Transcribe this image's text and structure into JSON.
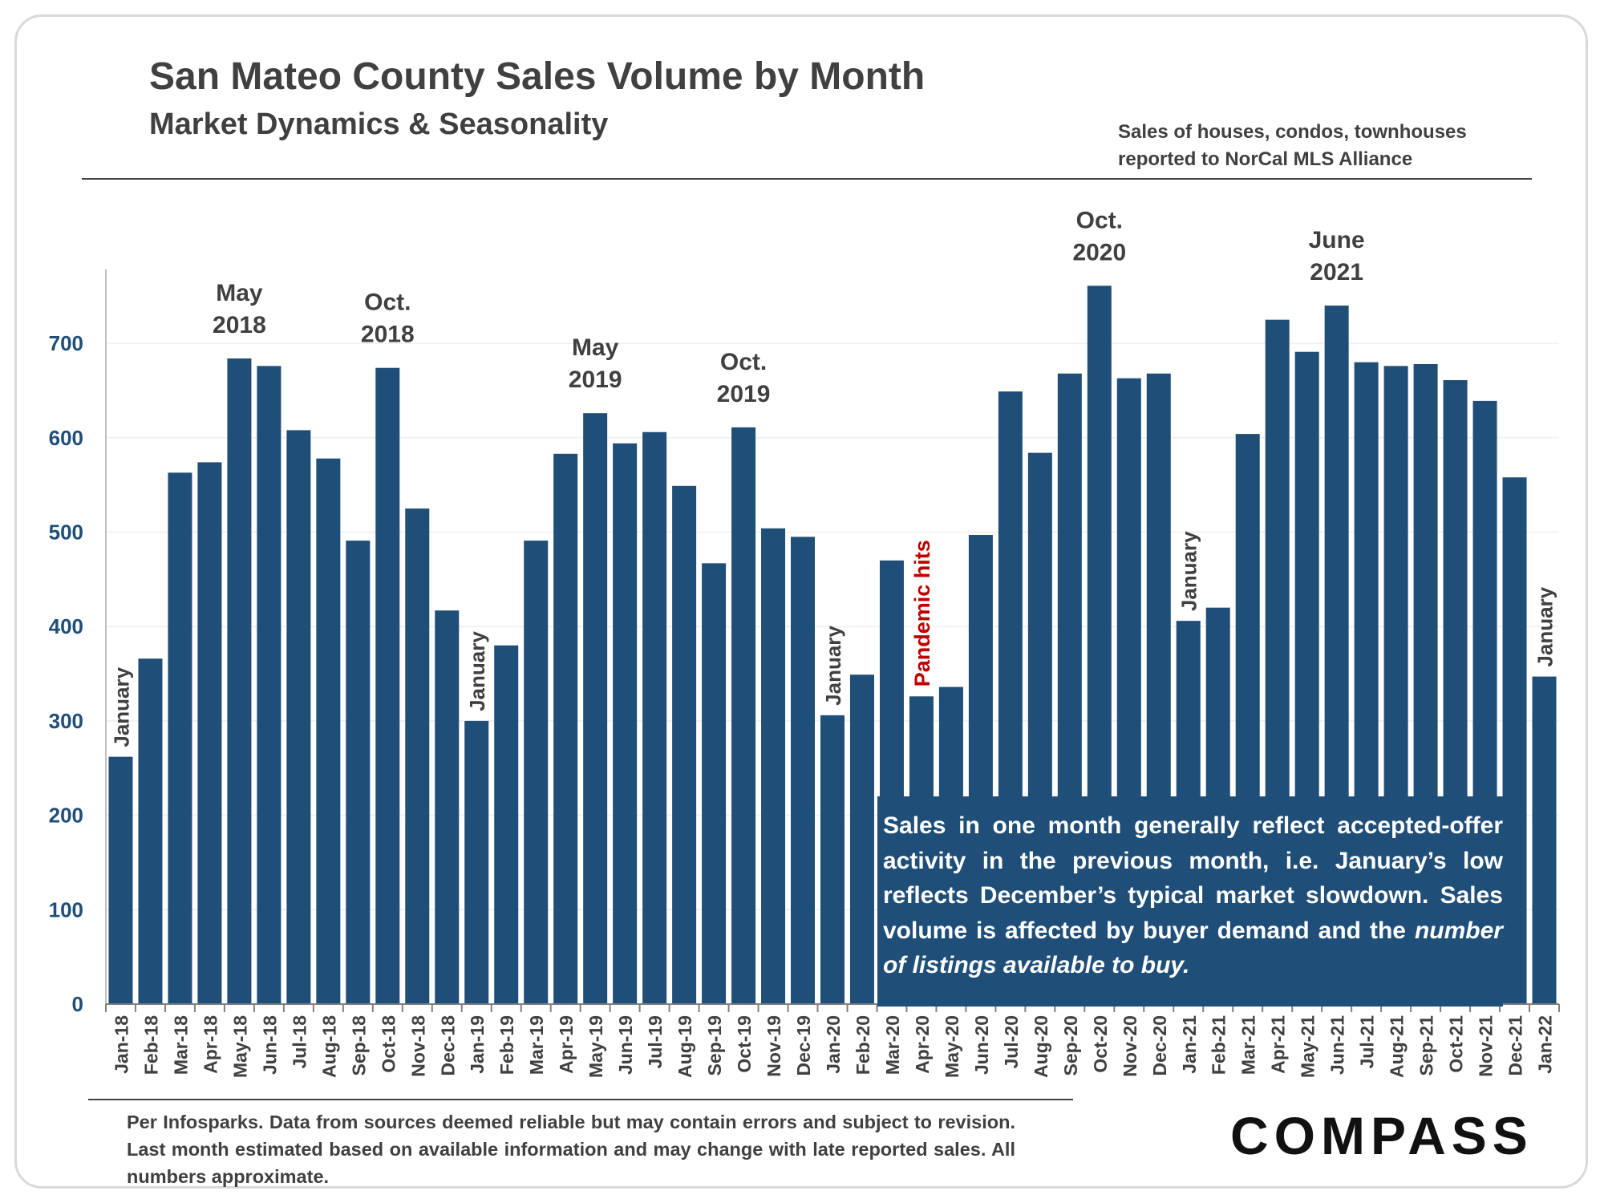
{
  "header": {
    "title": "San Mateo County Sales Volume by Month",
    "subtitle": "Market Dynamics & Seasonality",
    "source_line1": "Sales of houses, condos, townhouses",
    "source_line2": "reported to NorCal MLS Alliance"
  },
  "callout": {
    "text": "Sales in one month generally reflect accepted-offer activity in the previous month, i.e. January’s low reflects December’s typical market slowdown. Sales volume is affected by buyer demand and the",
    "emphasis": "number of listings available to buy."
  },
  "footnote": "Per Infosparks. Data from sources deemed reliable but may contain errors and subject to revision. Last month estimated based on available information and may change with late reported sales. All numbers approximate.",
  "logo": "COMPASS",
  "colors": {
    "bar": "#1f4e79",
    "text": "#404040",
    "pandemic": "#c00000",
    "grid": "#f2f2f2"
  },
  "chart_data": {
    "type": "bar",
    "categories": [
      "Jan-18",
      "Feb-18",
      "Mar-18",
      "Apr-18",
      "May-18",
      "Jun-18",
      "Jul-18",
      "Aug-18",
      "Sep-18",
      "Oct-18",
      "Nov-18",
      "Dec-18",
      "Jan-19",
      "Feb-19",
      "Mar-19",
      "Apr-19",
      "May-19",
      "Jun-19",
      "Jul-19",
      "Aug-19",
      "Sep-19",
      "Oct-19",
      "Nov-19",
      "Dec-19",
      "Jan-20",
      "Feb-20",
      "Mar-20",
      "Apr-20",
      "May-20",
      "Jun-20",
      "Jul-20",
      "Aug-20",
      "Sep-20",
      "Oct-20",
      "Nov-20",
      "Dec-20",
      "Jan-21",
      "Feb-21",
      "Mar-21",
      "Apr-21",
      "May-21",
      "Jun-21",
      "Jul-21",
      "Aug-21",
      "Sep-21",
      "Oct-21",
      "Nov-21",
      "Dec-21",
      "Jan-22"
    ],
    "values": [
      262,
      366,
      563,
      574,
      684,
      676,
      608,
      578,
      491,
      674,
      525,
      417,
      300,
      380,
      491,
      583,
      626,
      594,
      606,
      549,
      467,
      611,
      504,
      495,
      306,
      349,
      470,
      326,
      336,
      497,
      649,
      584,
      668,
      761,
      663,
      668,
      406,
      420,
      604,
      725,
      691,
      740,
      680,
      676,
      678,
      661,
      639,
      558,
      347
    ],
    "ylim": [
      0,
      780
    ],
    "yticks": [
      "0",
      "100",
      "200",
      "300",
      "400",
      "500",
      "600",
      "700"
    ],
    "grid": true,
    "annotations": [
      {
        "category": "May-18",
        "lines": [
          "May",
          "2018"
        ]
      },
      {
        "category": "Oct-18",
        "lines": [
          "Oct.",
          "2018"
        ]
      },
      {
        "category": "May-19",
        "lines": [
          "May",
          "2019"
        ]
      },
      {
        "category": "Oct-19",
        "lines": [
          "Oct.",
          "2019"
        ]
      },
      {
        "category": "Oct-20",
        "lines": [
          "Oct.",
          "2020"
        ]
      },
      {
        "category": "Jun-21",
        "lines": [
          "June",
          "2021"
        ]
      }
    ],
    "vertical_labels": [
      {
        "category": "Jan-18",
        "text": "January",
        "style": "normal"
      },
      {
        "category": "Jan-19",
        "text": "January",
        "style": "normal"
      },
      {
        "category": "Jan-20",
        "text": "January",
        "style": "normal"
      },
      {
        "category": "Apr-20",
        "text": "Pandemic hits",
        "style": "pandemic"
      },
      {
        "category": "Jan-21",
        "text": "January",
        "style": "normal"
      },
      {
        "category": "Jan-22",
        "text": "January",
        "style": "normal"
      }
    ]
  }
}
